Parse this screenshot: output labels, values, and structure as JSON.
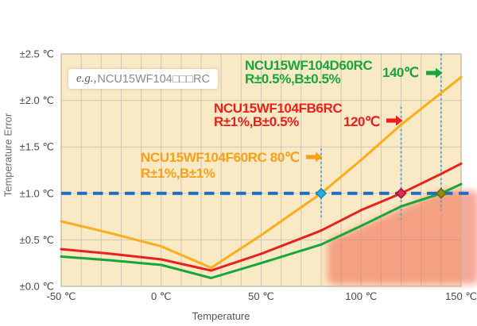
{
  "example_box": {
    "prefix": "e.g.,",
    "code": "NCU15WF104□□□RC"
  },
  "callouts": [
    {
      "id": "green",
      "line1": "NCU15WF104D60RC",
      "line2": "R±0.5%,B±0.5%",
      "temp_label": "140℃",
      "color": "#17A63B"
    },
    {
      "id": "red",
      "line1": "NCU15WF104FB6RC",
      "line2": "R±1%,B±0.5%",
      "temp_label": "120℃",
      "color": "#E8211C"
    },
    {
      "id": "orange",
      "line1": "NCU15WF104F60RC 80℃",
      "line2": "R±1%,B±1%",
      "temp_label": "",
      "color": "#F7A11A"
    }
  ],
  "chart_data": {
    "type": "line",
    "title": "",
    "xlabel": "Temperature",
    "ylabel": "Temperature Error",
    "xlim": [
      -50,
      150
    ],
    "ylim": [
      0,
      2.5
    ],
    "grid": true,
    "x_grid_step": 10,
    "y_grid_step": 0.5,
    "x_tick_values": [
      -50,
      0,
      50,
      100,
      150
    ],
    "x_tick_labels": [
      "-50 ℃",
      "0 ℃",
      "50 ℃",
      "100 ℃",
      "150 ℃"
    ],
    "y_tick_values": [
      0,
      0.5,
      1.0,
      1.5,
      2.0,
      2.5
    ],
    "y_tick_labels": [
      "±0.0 ℃",
      "±0.5 ℃",
      "±1.0 ℃",
      "±1.5 ℃",
      "±2.0 ℃",
      "±2.5 ℃"
    ],
    "x": [
      -50,
      -25,
      0,
      25,
      50,
      80,
      100,
      120,
      140,
      150
    ],
    "series": [
      {
        "name": "NCU15WF104F60RC R±1%,B±1%",
        "color": "#FBAD1B",
        "values": [
          0.7,
          0.57,
          0.43,
          0.2,
          0.55,
          1.0,
          1.36,
          1.74,
          2.08,
          2.25
        ]
      },
      {
        "name": "NCU15WF104FB6RC R±1%,B±0.5%",
        "color": "#E8211C",
        "values": [
          0.4,
          0.35,
          0.29,
          0.17,
          0.35,
          0.6,
          0.82,
          1.0,
          1.21,
          1.32
        ]
      },
      {
        "name": "NCU15WF104D60RC R±0.5%,B±0.5%",
        "color": "#17A63B",
        "values": [
          0.32,
          0.28,
          0.23,
          0.09,
          0.25,
          0.45,
          0.65,
          0.86,
          1.0,
          1.1
        ]
      }
    ],
    "reference_line": {
      "y": 1.0,
      "color": "#1C6EC2",
      "style": "dashed"
    },
    "guide_color": "#44A0E0",
    "markers": [
      {
        "x": 80,
        "y": 1.0,
        "fill": "#2BAAE2",
        "stroke": "#1587BE",
        "guide_top": 1.48,
        "guide_bottom": 0.74
      },
      {
        "x": 120,
        "y": 1.0,
        "fill": "#E2294F",
        "stroke": "#A50F35",
        "guide_top": 1.93,
        "guide_bottom": 0.72
      },
      {
        "x": 140,
        "y": 1.0,
        "fill": "#91891A",
        "stroke": "#6F6A00",
        "guide_top": 2.5,
        "guide_bottom": 0.82
      }
    ],
    "shade_region": {
      "color": "#F1745A",
      "opacity": 0.62,
      "points": [
        [
          86,
          0.08
        ],
        [
          86,
          0.45
        ],
        [
          141,
          0.97
        ],
        [
          156,
          0.97
        ],
        [
          156,
          0.08
        ]
      ]
    },
    "plot_bg": "#FAE9C5",
    "grid_color": "#CBC7B9",
    "border_color": "#B8B4A6",
    "axis_text_color": "#4a4a4a",
    "legend_position": "inside-top"
  }
}
